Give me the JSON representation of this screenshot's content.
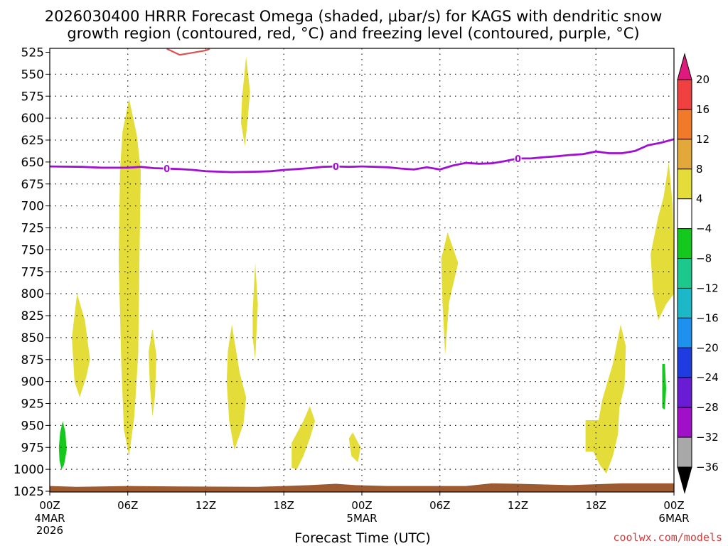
{
  "chart_data": {
    "type": "heatmap",
    "title_lines": [
      "2026030400 HRRR Forecast Omega (shaded, μbar/s) for KAGS with dendritic snow",
      "growth region (contoured, red, °C) and freezing level (contoured, purple, °C)"
    ],
    "xlabel": "Forecast Time (UTC)",
    "credit": "coolwx.com/models",
    "x_range_hours": [
      0,
      48
    ],
    "y_axis": {
      "quantity": "pressure (mb)",
      "range": [
        525,
        1025
      ],
      "inverted": true,
      "ticks": [
        525,
        550,
        575,
        600,
        625,
        650,
        675,
        700,
        725,
        750,
        775,
        800,
        825,
        850,
        875,
        900,
        925,
        950,
        975,
        1000,
        1025
      ]
    },
    "x_ticks": [
      {
        "hour": 0,
        "label": "00Z",
        "sub": [
          "4MAR",
          "2026"
        ]
      },
      {
        "hour": 6,
        "label": "06Z",
        "sub": []
      },
      {
        "hour": 12,
        "label": "12Z",
        "sub": []
      },
      {
        "hour": 18,
        "label": "18Z",
        "sub": []
      },
      {
        "hour": 24,
        "label": "00Z",
        "sub": [
          "5MAR"
        ]
      },
      {
        "hour": 30,
        "label": "06Z",
        "sub": []
      },
      {
        "hour": 36,
        "label": "12Z",
        "sub": []
      },
      {
        "hour": 42,
        "label": "18Z",
        "sub": []
      },
      {
        "hour": 48,
        "label": "00Z",
        "sub": [
          "6MAR"
        ]
      }
    ],
    "grid": true,
    "colorbar": {
      "position": "right",
      "ticks": [
        "20",
        "16",
        "12",
        "8",
        "4",
        "−4",
        "−8",
        "−12",
        "−16",
        "−20",
        "−24",
        "−28",
        "−32",
        "−36"
      ],
      "colors_top_to_bottom": [
        "#e0197e",
        "#f04040",
        "#f07a2a",
        "#e3a83a",
        "#e4dc38",
        "#ffffff",
        "#14c81e",
        "#1cc88c",
        "#1cb8c8",
        "#1e90ee",
        "#1e3ce0",
        "#6a1cd4",
        "#a010c8",
        "#a8a8a8",
        "#000000"
      ]
    },
    "freezing_level": {
      "color": "#a010d0",
      "label": "0",
      "label_hours": [
        9,
        22,
        36
      ],
      "points": [
        [
          0,
          655
        ],
        [
          2.5,
          655.5
        ],
        [
          4,
          656.5
        ],
        [
          6,
          656.5
        ],
        [
          7,
          655.5
        ],
        [
          8,
          657
        ],
        [
          10,
          658
        ],
        [
          11,
          659
        ],
        [
          12,
          660.5
        ],
        [
          13,
          661
        ],
        [
          14,
          661.5
        ],
        [
          16,
          661
        ],
        [
          17,
          660.5
        ],
        [
          18,
          659
        ],
        [
          19,
          658
        ],
        [
          20,
          657
        ],
        [
          21,
          655.5
        ],
        [
          22,
          655
        ],
        [
          23,
          655.5
        ],
        [
          24,
          655
        ],
        [
          25,
          655.5
        ],
        [
          26,
          656
        ],
        [
          27,
          657.5
        ],
        [
          28,
          658.5
        ],
        [
          29,
          656
        ],
        [
          30,
          658.5
        ],
        [
          31,
          654
        ],
        [
          32,
          651
        ],
        [
          33,
          652
        ],
        [
          34,
          651.5
        ],
        [
          35,
          649
        ],
        [
          36,
          646
        ],
        [
          37,
          646
        ],
        [
          38,
          644.5
        ],
        [
          39,
          643.5
        ],
        [
          40,
          642
        ],
        [
          41,
          641
        ],
        [
          42,
          638
        ],
        [
          43,
          640
        ],
        [
          44,
          640
        ],
        [
          45,
          637.5
        ],
        [
          46,
          631
        ],
        [
          47,
          628
        ],
        [
          48,
          624
        ]
      ]
    },
    "dgz_contour": {
      "color": "#e05050",
      "points": [
        [
          9,
          521
        ],
        [
          10,
          528
        ],
        [
          11,
          525.5
        ],
        [
          12,
          523
        ],
        [
          12.3,
          521
        ]
      ]
    },
    "terrain": {
      "color": "#9e5a30",
      "top": [
        [
          0,
          1019
        ],
        [
          2,
          1020
        ],
        [
          6,
          1019
        ],
        [
          10,
          1019.5
        ],
        [
          16,
          1020
        ],
        [
          20,
          1018
        ],
        [
          22,
          1016.5
        ],
        [
          23.5,
          1018
        ],
        [
          26,
          1019
        ],
        [
          32,
          1019
        ],
        [
          34,
          1016
        ],
        [
          36,
          1016.5
        ],
        [
          40,
          1018
        ],
        [
          42,
          1017
        ],
        [
          44,
          1016
        ],
        [
          48,
          1016
        ]
      ]
    },
    "omega_regions": [
      {
        "value": "4 to 8",
        "color": "#e4dc38",
        "points": [
          [
            1.7,
            850
          ],
          [
            2.1,
            800
          ],
          [
            2.7,
            830
          ],
          [
            3.1,
            875
          ],
          [
            2.8,
            895
          ],
          [
            2.3,
            918
          ],
          [
            1.9,
            900
          ]
        ]
      },
      {
        "value": "4 to 8",
        "color": "#e4dc38",
        "points": [
          [
            5.4,
            660
          ],
          [
            5.6,
            615
          ],
          [
            6.1,
            578
          ],
          [
            6.7,
            620
          ],
          [
            7,
            660
          ],
          [
            6.9,
            760
          ],
          [
            6.8,
            870
          ],
          [
            6.5,
            940
          ],
          [
            6.1,
            985
          ],
          [
            5.7,
            955
          ],
          [
            5.5,
            880
          ],
          [
            5.3,
            760
          ]
        ]
      },
      {
        "value": "4 to 8",
        "color": "#e4dc38",
        "points": [
          [
            7.6,
            866
          ],
          [
            7.9,
            840
          ],
          [
            8.2,
            870
          ],
          [
            8.1,
            915
          ],
          [
            7.9,
            940
          ],
          [
            7.7,
            905
          ]
        ]
      },
      {
        "value": "4 to 8",
        "color": "#e4dc38",
        "points": [
          [
            14.8,
            575
          ],
          [
            15.1,
            530
          ],
          [
            15.4,
            570
          ],
          [
            15.2,
            605
          ],
          [
            15,
            632
          ],
          [
            14.7,
            605
          ]
        ]
      },
      {
        "value": "4 to 8",
        "color": "#e4dc38",
        "points": [
          [
            15.6,
            820
          ],
          [
            15.8,
            765
          ],
          [
            16,
            812
          ],
          [
            15.8,
            875
          ],
          [
            15.6,
            850
          ]
        ]
      },
      {
        "value": "4 to 8",
        "color": "#e4dc38",
        "points": [
          [
            13.7,
            865
          ],
          [
            14,
            835
          ],
          [
            14.6,
            890
          ],
          [
            15.1,
            918
          ],
          [
            14.9,
            948
          ],
          [
            14.2,
            978
          ],
          [
            13.8,
            945
          ],
          [
            13.6,
            900
          ]
        ]
      },
      {
        "value": "4 to 8",
        "color": "#e4dc38",
        "points": [
          [
            18.6,
            970
          ],
          [
            19.5,
            945
          ],
          [
            20,
            928
          ],
          [
            20.4,
            945
          ],
          [
            20,
            965
          ],
          [
            19.5,
            985
          ],
          [
            19,
            1000
          ],
          [
            18.6,
            998
          ]
        ]
      },
      {
        "value": "4 to 8",
        "color": "#e4dc38",
        "points": [
          [
            23,
            965
          ],
          [
            23.3,
            958
          ],
          [
            23.9,
            975
          ],
          [
            23.7,
            992
          ],
          [
            23.2,
            985
          ]
        ]
      },
      {
        "value": "4 to 8",
        "color": "#e4dc38",
        "points": [
          [
            30.1,
            760
          ],
          [
            30.6,
            730
          ],
          [
            31.4,
            765
          ],
          [
            30.7,
            810
          ],
          [
            30.4,
            870
          ],
          [
            30.2,
            810
          ]
        ]
      },
      {
        "value": "4 to 8",
        "color": "#e4dc38",
        "points": [
          [
            46.2,
            755
          ],
          [
            46.8,
            712
          ],
          [
            47.2,
            690
          ],
          [
            47.6,
            650
          ],
          [
            47.9,
            700
          ],
          [
            48,
            780
          ],
          [
            48,
            800
          ],
          [
            47.4,
            812
          ],
          [
            46.8,
            830
          ],
          [
            46.4,
            800
          ]
        ]
      },
      {
        "value": "4 to 8",
        "color": "#e4dc38",
        "points": [
          [
            41.2,
            944
          ],
          [
            42.2,
            944
          ],
          [
            42.5,
            920
          ],
          [
            43.3,
            880
          ],
          [
            43.9,
            835
          ],
          [
            44.3,
            860
          ],
          [
            44.2,
            905
          ],
          [
            43.8,
            930
          ],
          [
            43.7,
            960
          ],
          [
            43.3,
            985
          ],
          [
            42.8,
            1005
          ],
          [
            42.3,
            995
          ],
          [
            41.8,
            980
          ],
          [
            41.2,
            980
          ]
        ]
      },
      {
        "value": "−4 to −8",
        "color": "#14c81e",
        "points": [
          [
            0.7,
            975
          ],
          [
            0.8,
            958
          ],
          [
            1,
            945
          ],
          [
            1.2,
            958
          ],
          [
            1.3,
            978
          ],
          [
            1.1,
            995
          ],
          [
            0.9,
            1000
          ],
          [
            0.75,
            990
          ]
        ]
      },
      {
        "value": "−4 to −8",
        "color": "#14c81e",
        "points": [
          [
            47.1,
            880
          ],
          [
            47.3,
            880
          ],
          [
            47.4,
            908
          ],
          [
            47.3,
            932
          ],
          [
            47.1,
            930
          ]
        ]
      }
    ]
  }
}
